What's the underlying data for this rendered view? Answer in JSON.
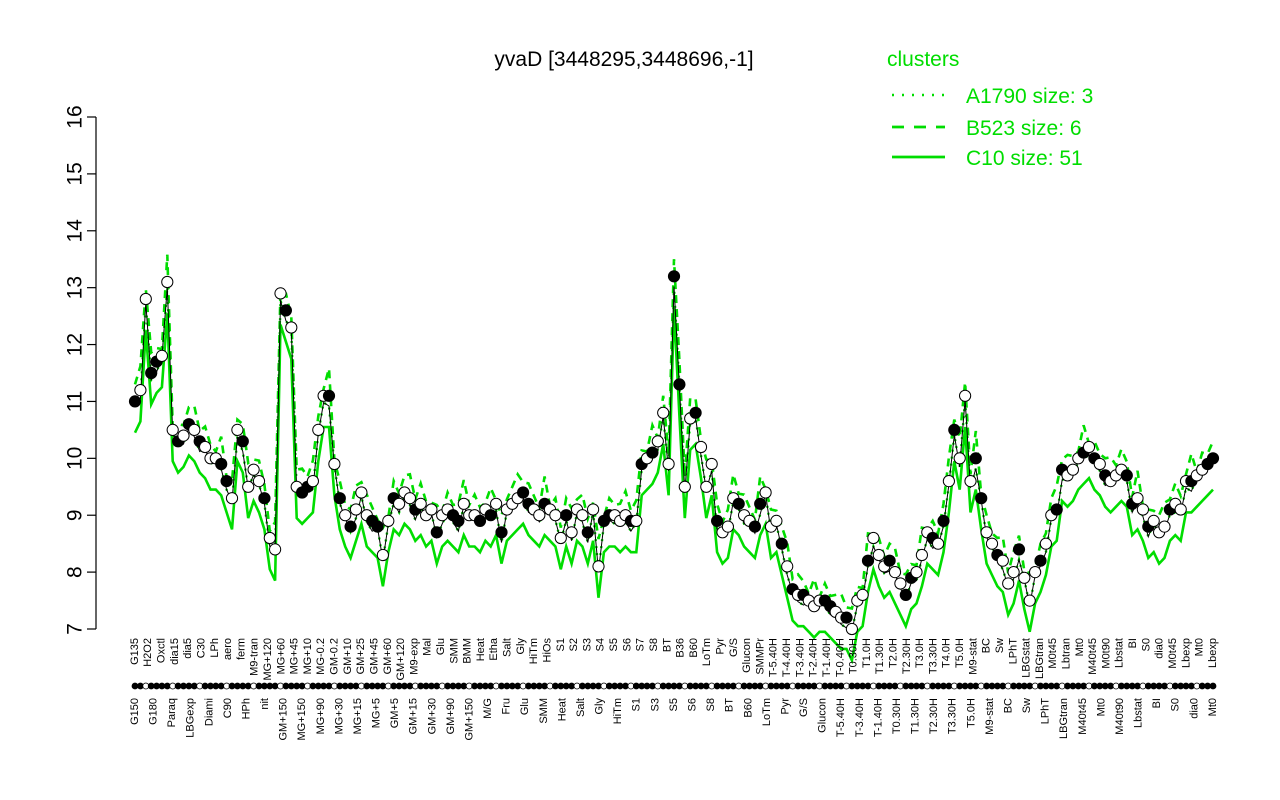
{
  "chart_data": {
    "type": "line",
    "title": "yvaD [3448295,3448696,-1]",
    "xlabel": "",
    "ylabel": "",
    "ylim": [
      7,
      16
    ],
    "yticks": [
      7,
      8,
      9,
      10,
      11,
      12,
      13,
      14,
      15,
      16
    ],
    "grid": false,
    "legend_title": "clusters",
    "legend_position": "top-right",
    "series_color": "#00dd00",
    "legend": [
      {
        "label": "A1790 size: 3",
        "style": "dotted"
      },
      {
        "label": "B523 size: 6",
        "style": "dashed"
      },
      {
        "label": "C10 size: 51",
        "style": "solid"
      }
    ],
    "x_labels_upper": [
      "G135",
      "H2O2",
      "Oxctl",
      "dia15",
      "dia5",
      "C30",
      "LPh",
      "aero",
      "ferm",
      "M9-tran",
      "MG+120",
      "MG+60",
      "MG+45",
      "MG+10",
      "MG-0.2",
      "GM-0.2",
      "GM+10",
      "GM+25",
      "GM+45",
      "GM+60",
      "GM+120",
      "M9-exp",
      "Mal",
      "Glu",
      "SMM",
      "BMM",
      "Heat",
      "Etha",
      "Salt",
      "Gly",
      "HiTm",
      "HiOs",
      "S1",
      "S2",
      "S3",
      "S4",
      "S5",
      "S6",
      "S7",
      "S8",
      "BT",
      "B36",
      "B60",
      "LoTm",
      "Pyr",
      "G/S",
      "Glucon",
      "SMMPr",
      "T-5.40H",
      "T-4.40H",
      "T-3.40H",
      "T-2.40H",
      "T-1.40H",
      "T-0.40H",
      "T0.30H",
      "T1.0H",
      "T1.30H",
      "T2.0H",
      "T2.30H",
      "T3.0H",
      "T3.30H",
      "T4.0H",
      "T5.0H",
      "M9-stat",
      "BC",
      "Sw",
      "LPhT",
      "LBGstat",
      "LBGtran",
      "M0t45",
      "Lbtran",
      "Mt0",
      "M40t45",
      "M0t90",
      "Lbstat",
      "BI",
      "S0",
      "dia0",
      "M0t45",
      "Lbexp",
      "Mt0",
      "Lbexp"
    ],
    "x_labels_lower": [
      "G150",
      "G180",
      "Paraq",
      "LBGexp",
      "Diami",
      "C90",
      "HPh",
      "nit",
      "GM+150",
      "MG+150",
      "MG+90",
      "MG+30",
      "MG+15",
      "MG+5",
      "GM+5",
      "GM+15",
      "GM+30",
      "GM+90",
      "GM+150",
      "M/G",
      "Fru",
      "Glu",
      "SMM",
      "Heat",
      "Salt",
      "Gly",
      "HiTm",
      "S1",
      "S3",
      "S5",
      "S6",
      "S8",
      "BT",
      "B60",
      "LoTm",
      "Pyr",
      "G/S",
      "Glucon",
      "T-5.40H",
      "T-3.40H",
      "T-1.40H",
      "T0.30H",
      "T1.30H",
      "T2.30H",
      "T3.30H",
      "T5.0H",
      "M9-stat",
      "BC",
      "Sw",
      "LPhT",
      "LBGtran",
      "M40t45",
      "Mt0",
      "M40t90",
      "Lbstat",
      "BI",
      "S0",
      "dia0",
      "Mt0"
    ],
    "series": [
      {
        "line": "C10",
        "y": [
          11.0,
          11.2,
          12.8,
          11.5,
          11.7,
          11.8,
          13.1,
          10.5,
          10.3,
          10.4,
          10.6,
          10.5,
          10.3,
          10.2,
          10.0,
          10.0,
          9.9,
          9.6,
          9.3,
          10.5,
          10.3,
          9.5,
          9.8,
          9.6,
          9.3,
          8.6,
          8.4,
          12.9,
          12.6,
          12.3,
          9.5,
          9.4,
          9.5,
          9.6,
          10.5,
          11.1,
          11.1,
          9.9,
          9.3,
          9.0,
          8.8,
          9.1,
          9.4,
          9.0,
          8.9,
          8.8,
          8.3,
          8.9,
          9.3,
          9.2,
          9.4,
          9.3,
          9.1,
          9.2,
          9.0,
          9.1,
          8.7,
          9.0,
          9.1,
          9.0,
          8.9,
          9.2,
          9.0,
          9.0,
          8.9,
          9.1,
          9.0,
          9.2,
          8.7,
          9.1,
          9.2,
          9.3,
          9.4,
          9.2,
          9.1,
          9.0,
          9.2,
          9.1,
          9.0,
          8.6,
          9.0,
          8.7,
          9.1,
          9.0,
          8.7,
          9.1,
          8.1,
          8.9,
          9.0,
          9.0,
          8.9,
          9.0,
          8.9,
          8.9,
          9.9,
          10.0,
          10.1,
          10.3,
          10.8,
          9.9,
          13.2,
          11.3,
          9.5,
          10.7,
          10.8,
          10.2,
          9.5,
          9.9,
          8.9,
          8.7,
          8.8,
          9.3,
          9.2,
          9.0,
          8.9,
          8.8,
          9.2,
          9.4,
          8.8,
          8.9,
          8.5,
          8.1,
          7.7,
          7.6,
          7.6,
          7.5,
          7.4,
          7.5,
          7.5,
          7.4,
          7.3,
          7.2,
          7.2,
          7.0,
          7.5,
          7.6,
          8.2,
          8.6,
          8.3,
          8.1,
          8.2,
          8.0,
          7.8,
          7.6,
          7.9,
          8.0,
          8.3,
          8.7,
          8.6,
          8.5,
          8.9,
          9.6,
          10.5,
          10.0,
          11.1,
          9.6,
          10.0,
          9.3,
          8.7,
          8.5,
          8.3,
          8.2,
          7.8,
          8.0,
          8.4,
          7.9,
          7.5,
          8.0,
          8.2,
          8.5,
          9.0,
          9.1,
          9.8,
          9.7,
          9.8,
          10.0,
          10.1,
          10.2,
          10.0,
          9.9,
          9.7,
          9.6,
          9.7,
          9.8,
          9.7,
          9.2,
          9.3,
          9.1,
          8.8,
          8.9,
          8.7,
          8.8,
          9.1,
          9.2,
          9.1,
          9.6,
          9.6,
          9.7,
          9.8,
          9.9,
          10.0
        ]
      }
    ]
  }
}
